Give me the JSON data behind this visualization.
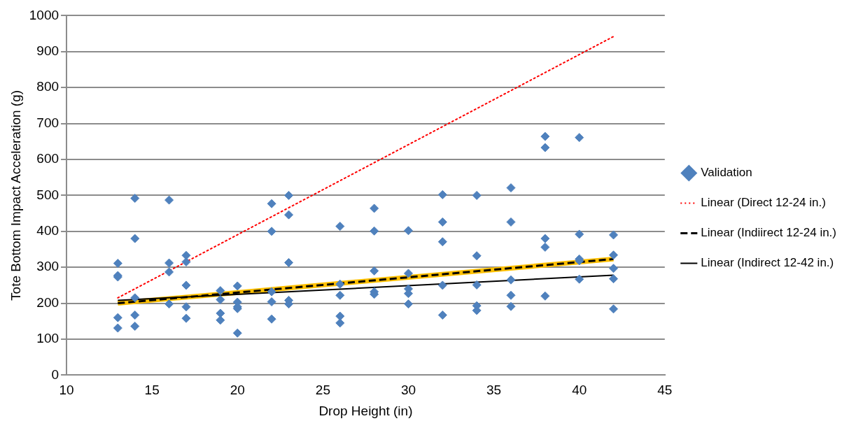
{
  "chart_data": {
    "type": "scatter",
    "xlabel": "Drop Height (in)",
    "ylabel": "Tote Bottom Impact Acceleration (g)",
    "xlim": [
      10,
      45
    ],
    "xticks": [
      10,
      15,
      20,
      25,
      30,
      35,
      40,
      45
    ],
    "ylim": [
      0,
      1000
    ],
    "yticks": [
      0,
      100,
      200,
      300,
      400,
      500,
      600,
      700,
      800,
      900,
      1000
    ],
    "grid": "y",
    "legend": "right",
    "series": [
      {
        "name": "Validation",
        "type": "scatter",
        "color": "#4f81bd",
        "marker": "diamond",
        "x": [
          13,
          13,
          13,
          13,
          13,
          14,
          14,
          14,
          14,
          14,
          16,
          16,
          16,
          16,
          17,
          17,
          17,
          17,
          17,
          19,
          19,
          19,
          19,
          20,
          20,
          20,
          20,
          20,
          22,
          22,
          22,
          22,
          22,
          23,
          23,
          23,
          23,
          23,
          26,
          26,
          26,
          26,
          26,
          28,
          28,
          28,
          28,
          28,
          30,
          30,
          30,
          30,
          30,
          32,
          32,
          32,
          32,
          32,
          34,
          34,
          34,
          34,
          34,
          36,
          36,
          36,
          36,
          36,
          38,
          38,
          38,
          38,
          38,
          40,
          40,
          40,
          40,
          40,
          42,
          42,
          42,
          42,
          42
        ],
        "values": [
          311,
          277,
          273,
          160,
          131,
          492,
          380,
          215,
          167,
          136,
          487,
          312,
          287,
          198,
          333,
          315,
          250,
          190,
          158,
          235,
          210,
          172,
          153,
          248,
          203,
          190,
          185,
          117,
          477,
          400,
          232,
          204,
          156,
          500,
          446,
          313,
          208,
          198,
          414,
          253,
          222,
          164,
          145,
          464,
          401,
          290,
          232,
          225,
          402,
          283,
          240,
          227,
          198,
          502,
          426,
          371,
          250,
          167,
          500,
          332,
          251,
          193,
          180,
          521,
          426,
          265,
          222,
          191,
          664,
          633,
          380,
          356,
          220,
          661,
          392,
          323,
          318,
          267,
          390,
          334,
          297,
          268,
          184
        ]
      },
      {
        "type": "line",
        "color": "#ffc000",
        "marker": "none",
        "line_style": "solid",
        "x": [
          13,
          42
        ],
        "values": [
          200,
          323
        ]
      },
      {
        "name": "Linear (Direct 12-24 in.)",
        "type": "line",
        "color": "#ff0000",
        "marker": "none",
        "line_style": "dotted",
        "x": [
          13,
          42
        ],
        "values": [
          215,
          942
        ]
      },
      {
        "name": "Linear (Indiirect 12-24 in.)",
        "type": "line",
        "color": "#000000",
        "marker": "none",
        "line_style": "dashed",
        "x": [
          13,
          42
        ],
        "values": [
          200,
          323
        ]
      },
      {
        "name": "Linear (Indirect 12-42 in.)",
        "type": "line",
        "color": "#000000",
        "marker": "none",
        "line_style": "solid",
        "x": [
          13,
          42
        ],
        "values": [
          208,
          278
        ]
      }
    ]
  }
}
